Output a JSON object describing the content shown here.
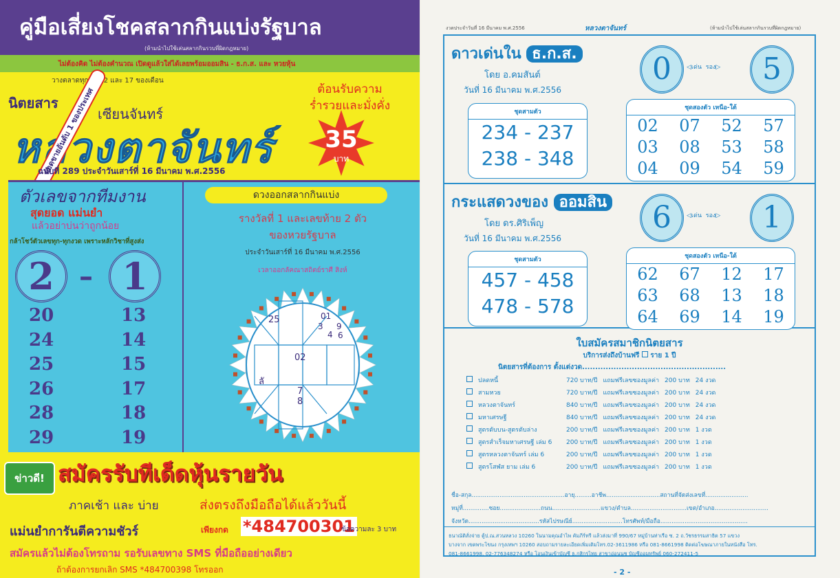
{
  "left": {
    "header_title": "คู่มือเสี่ยงโชคสลากกินแบ่งรัฐบาล",
    "header_note": "(ห้ามนำไปใช้เล่นสลากกินรวบที่ผิดกฎหมาย)",
    "tagline": "ไม่ต้องคิด ไม่ต้องคำนวณ เปิดดูแล้วใส่ได้เลยพร้อมออมสิน - ธ.ก.ส. และ หวยหุ้น",
    "release": "วางตลาดทุกวันที่ 2 และ 17 ของเดือน",
    "magazine_label": "นิตยสาร",
    "author": "เซียนจันทร์",
    "title": "หลวงตาจันทร์",
    "badge": "ยอดขายอันดับ 1 ของประเทศ",
    "welcome": [
      "ต้อนรับความ",
      "ร่ำรวยและมั่งคั่ง"
    ],
    "price": "35",
    "price_unit": "บาท",
    "issue": "ฉบับที่ 289 ประจำวันเสาร์ที่ 16 มีนาคม พ.ศ.2556",
    "team": {
      "title": "ตัวเลขจากทีมงาน",
      "sub1": "สุดยอด แม่นยำ",
      "sub2": "แล้วอย่าบ่นว่าถูกน้อย",
      "sub3": "กล้าโชว์ตัวเลขทุก-ทุกงวด เพราะหลักวิชาที่สูงส่ง",
      "main": [
        "2",
        "1"
      ],
      "col1": [
        "20",
        "24",
        "25",
        "26",
        "28",
        "29"
      ],
      "col2": [
        "13",
        "14",
        "15",
        "17",
        "18",
        "19"
      ]
    },
    "horo": {
      "pill": "ดวงออกสลากกินแบ่ง",
      "line1": "รางวัลที่ 1 และเลขท้าย 2 ตัว",
      "line2": "ของหวยรัฐบาล",
      "date": "ประจำวันเสาร์ที่ 16 มีนาคม พ.ศ.2556",
      "lagna": "เวลาออกลัคณาสถิตย์ราศี สิงห์",
      "cells": {
        "nw": "25",
        "ne": [
          "01",
          "3",
          "4",
          "9",
          "6"
        ],
        "center": "02",
        "sw": "ลั",
        "s": [
          "7",
          "8"
        ]
      }
    },
    "promo": {
      "news": "ข่าวดี!",
      "title": "สมัครรับทีเด็ดหุ้นรายวัน",
      "line1a": "ภาคเช้า และ บ่าย",
      "line1b": "ส่งตรงถึงมือถือได้แล้ววันนี้",
      "line2a": "แม่นยำการันตีความชัวร์",
      "line2b": "เพียงกด",
      "code": "*484700301",
      "line2c": "ข้อความละ 3 บาท",
      "line3": "สมัครแล้วไม่ต้องโทรถาม รอรับเลขทาง SMS ที่มือถืออย่างเดียว",
      "line4": "ถ้าต้องการยกเลิก SMS *484700398 โทรออก"
    }
  },
  "right": {
    "top_left": "งวดประจำวันที่ 16 มีนาคม พ.ศ.2556",
    "top_center": "หลวงตาจันทร์",
    "top_right": "(ห้ามนำไปใช้เล่นสลากกินรวบที่ผิดกฎหมาย)",
    "sections": [
      {
        "title": "ดาวเด่นใน",
        "pill": "ธ.ก.ส.",
        "by": "โดย อ.คมสันต์",
        "date": "วันที่ 16 มีนาคม พ.ศ.2556",
        "lead": "0",
        "second": "5",
        "lead_label": "เด่น",
        "second_label": "รอง",
        "three_label": "ชุดสามตัว",
        "three": [
          "234 - 237",
          "238 - 348"
        ],
        "two_label": "ชุดสองตัว เหนือ-ใต้",
        "two": [
          [
            "02",
            "07",
            "52",
            "57"
          ],
          [
            "03",
            "08",
            "53",
            "58"
          ],
          [
            "04",
            "09",
            "54",
            "59"
          ]
        ]
      },
      {
        "title": "กระแสดวงของ",
        "pill": "ออมสิน",
        "by": "โดย ดร.ศิริเพ็ญ",
        "date": "วันที่ 16 มีนาคม พ.ศ.2556",
        "lead": "6",
        "second": "1",
        "lead_label": "เด่น",
        "second_label": "รอง",
        "three_label": "ชุดสามตัว",
        "three": [
          "457 - 458",
          "478 - 578"
        ],
        "two_label": "ชุดสองตัว เหนือ-ใต้",
        "two": [
          [
            "62",
            "67",
            "12",
            "17"
          ],
          [
            "63",
            "68",
            "13",
            "18"
          ],
          [
            "64",
            "69",
            "14",
            "19"
          ]
        ]
      }
    ],
    "form": {
      "title": "ใบสมัครสมาชิกนิตยสาร",
      "delivery": "บริการส่งถึงบ้านฟรี",
      "delivery_plan": "ราย 1 ปี",
      "want": "นิตยสารที่ต้องการ ตั้งแต่งวด.......................................................",
      "items": [
        [
          "ปลดหนี้",
          "720 บาท/ปี",
          "แถมฟรีเลขซองมูลค่า",
          "200 บาท",
          "24 งวด"
        ],
        [
          "สามหวย",
          "720 บาท/ปี",
          "แถมฟรีเลขซองมูลค่า",
          "200 บาท",
          "24 งวด"
        ],
        [
          "หลวงตาจันทร์",
          "840 บาท/ปี",
          "แถมฟรีเลขซองมูลค่า",
          "200 บาท",
          "24 งวด"
        ],
        [
          "มหาเศรษฐี",
          "840 บาท/ปี",
          "แถมฟรีเลขซองมูลค่า",
          "200 บาท",
          "24 งวด"
        ],
        [
          "สูตรตับบน-สูตรตับล่าง",
          "200 บาท/ปี",
          "แถมฟรีเลขซองมูลค่า",
          "200 บาท",
          "1 งวด"
        ],
        [
          "สูตรสำเร็จมหาเศรษฐี เล่ม 6",
          "200 บาท/ปี",
          "แถมฟรีเลขซองมูลค่า",
          "200 บาท",
          "1 งวด"
        ],
        [
          "สูตรหลวงตาจันทร์ เล่ม 6",
          "200 บาท/ปี",
          "แถมฟรีเลขซองมูลค่า",
          "200 บาท",
          "1 งวด"
        ],
        [
          "สูตรโสฬส ยาม เล่ม 6",
          "200 บาท/ปี",
          "แถมฟรีเลขซองมูลค่า",
          "200 บาท",
          "1 งวด"
        ]
      ],
      "fields1": "ชื่อ-สกุล..................................................อายุ.........อาชีพ.............................สถานที่จัดส่งเลขที่.......................",
      "fields2": "หมู่ที่..............ซอย......................ถนน..........................แขวง/ตำบล..............................เขต/อำเภอ.............................",
      "fields3": "จังหวัด......................................รหัสไปรษณีย์...........................โทรศัพท์/มือถือ...............................................",
      "pay1": "ธนาณัติสั่งจ่าย ตู้ป.ณ.สวนหลวง 10260 ในนามคุณอำไพ คัมภีร์ทรี แล้วส่งมาที่ 990/67 หมู่บ้านท่าเรือ ซ. 2 ถ.วัชรธรรมสาธิต 57 แขวง",
      "pay2": "บางจาก เขตพระโขนง กรุงเทพฯ 10260 สอบถามรายละเอียดเพิ่มเติมโทร.02-3611986 หรือ 081-8661998 ติดต่อโฆษณาภายในหนังสือ โทร.",
      "pay3": "081-8661998, 02-776348274 หรือ โอนเงินเข้าบัญชี ธ.กสิกรไทย สาขาอ่อนนุช บัญชีออมทรัพย์ 060-272411-5"
    },
    "page_number": "- 2 -"
  }
}
